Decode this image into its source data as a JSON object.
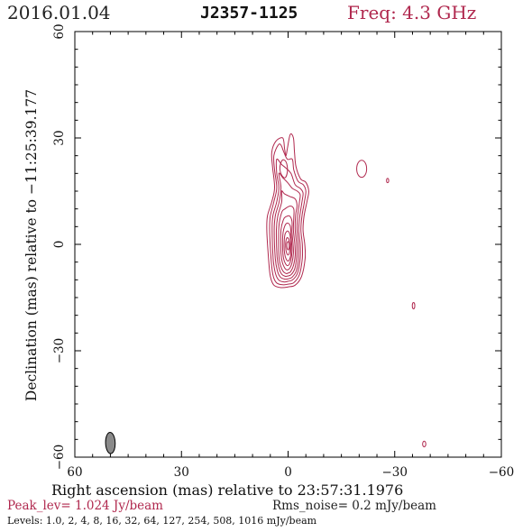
{
  "header": {
    "date": "2016.01.04",
    "source": "J2357-1125",
    "frequency": "Freq: 4.3 GHz"
  },
  "footer": {
    "peak": "Peak_lev=  1.024 Jy/beam",
    "rms": "Rms_noise=  0.2 mJy/beam",
    "levels": "Levels: 1.0,   2,   4,   8,  16,  32,  64, 127, 254, 508, 1016 mJy/beam"
  },
  "colors": {
    "contour": "#b0284e",
    "beam_fill": "#8a8a8a",
    "axis": "#000000"
  },
  "chart_data": {
    "type": "contour",
    "xlabel": "Right ascension (mas) relative to 23:57:31.1976",
    "ylabel": "Declination (mas) relative to −11:25:39.177",
    "xlim": [
      60,
      -60
    ],
    "ylim": [
      -60,
      60
    ],
    "x_ticks": [
      60,
      30,
      0,
      -30,
      -60
    ],
    "y_ticks": [
      60,
      30,
      0,
      -30,
      -60
    ],
    "x_tick_labels": [
      "60",
      "30",
      "0",
      "−30",
      "−60"
    ],
    "y_tick_labels": [
      "60",
      "30",
      "0",
      "−30",
      "−60"
    ],
    "contour_levels_mJy": [
      1.0,
      2,
      4,
      8,
      16,
      32,
      64,
      127,
      254,
      508,
      1016
    ],
    "peak_Jy_per_beam": 1.024,
    "rms_noise_mJy_per_beam": 0.2,
    "peak_position_mas": [
      0,
      0
    ],
    "beam": {
      "major_mas": 6.0,
      "minor_mas": 2.7,
      "pa_deg": 2,
      "center_mas": [
        50,
        -56
      ]
    },
    "core_contours": [
      {
        "level_index": 0,
        "points": [
          [
            1.5,
            30
          ],
          [
            3.5,
            29
          ],
          [
            4.6,
            26
          ],
          [
            4.4,
            22
          ],
          [
            3.8,
            16
          ],
          [
            4.6,
            12
          ],
          [
            5.8,
            8
          ],
          [
            6,
            4
          ],
          [
            5.5,
            -4
          ],
          [
            5,
            -9
          ],
          [
            4,
            -11.5
          ],
          [
            2,
            -12.2
          ],
          [
            0,
            -12
          ],
          [
            -2,
            -11.5
          ],
          [
            -3.8,
            -9
          ],
          [
            -4.8,
            -4
          ],
          [
            -4.7,
            0
          ],
          [
            -4.2,
            4
          ],
          [
            -4.5,
            8
          ],
          [
            -5.3,
            12
          ],
          [
            -5.8,
            15
          ],
          [
            -5,
            17.5
          ],
          [
            -3.5,
            18.5
          ],
          [
            -2.2,
            22
          ],
          [
            -1.8,
            26
          ],
          [
            -1.5,
            30
          ],
          [
            -0.6,
            31
          ],
          [
            0.2,
            27
          ],
          [
            0.6,
            25
          ],
          [
            1,
            27
          ]
        ]
      },
      {
        "level_index": 1,
        "points": [
          [
            2.8,
            28
          ],
          [
            4,
            25
          ],
          [
            3.8,
            21
          ],
          [
            3.2,
            16
          ],
          [
            4,
            12
          ],
          [
            5,
            8
          ],
          [
            5.2,
            4
          ],
          [
            4.8,
            -4
          ],
          [
            4.3,
            -8.5
          ],
          [
            3.3,
            -10.8
          ],
          [
            1.5,
            -11.4
          ],
          [
            0,
            -11.2
          ],
          [
            -1.6,
            -10.8
          ],
          [
            -3.2,
            -8.5
          ],
          [
            -4,
            -4
          ],
          [
            -4,
            0
          ],
          [
            -3.6,
            4
          ],
          [
            -3.9,
            8
          ],
          [
            -4.6,
            12
          ],
          [
            -5,
            15
          ],
          [
            -4.3,
            16.8
          ],
          [
            -2.8,
            17.8
          ],
          [
            -1.6,
            21
          ],
          [
            -1.2,
            24
          ],
          [
            0.2,
            24
          ],
          [
            1.2,
            26
          ],
          [
            2,
            28
          ]
        ]
      },
      {
        "level_index": 2,
        "points": [
          [
            3.2,
            24
          ],
          [
            3.2,
            20
          ],
          [
            2.6,
            16
          ],
          [
            3.2,
            12
          ],
          [
            4.3,
            8
          ],
          [
            4.5,
            4
          ],
          [
            4.2,
            -4
          ],
          [
            3.6,
            -8
          ],
          [
            2.7,
            -10
          ],
          [
            1.2,
            -10.6
          ],
          [
            0,
            -10.4
          ],
          [
            -1.3,
            -10
          ],
          [
            -2.7,
            -8
          ],
          [
            -3.4,
            -4
          ],
          [
            -3.4,
            0
          ],
          [
            -3,
            4
          ],
          [
            -3.3,
            8
          ],
          [
            -3.9,
            12
          ],
          [
            -4.2,
            14.5
          ],
          [
            -3.4,
            15.8
          ],
          [
            -2,
            16.8
          ],
          [
            -0.8,
            20
          ],
          [
            0.6,
            21.5
          ],
          [
            1.8,
            22.5
          ]
        ]
      },
      {
        "level_index": 3,
        "points": [
          [
            2.6,
            20
          ],
          [
            2,
            16
          ],
          [
            2.5,
            12
          ],
          [
            3.6,
            8
          ],
          [
            3.9,
            4
          ],
          [
            3.6,
            -4
          ],
          [
            3,
            -7.5
          ],
          [
            2.2,
            -9.2
          ],
          [
            1,
            -9.8
          ],
          [
            0,
            -9.7
          ],
          [
            -1.1,
            -9.3
          ],
          [
            -2.3,
            -7.5
          ],
          [
            -2.9,
            -4
          ],
          [
            -2.9,
            0
          ],
          [
            -2.5,
            4
          ],
          [
            -2.7,
            8
          ],
          [
            -3.2,
            12
          ],
          [
            -3.4,
            14
          ],
          [
            -2.6,
            15
          ],
          [
            -1.2,
            15.8
          ],
          [
            0.2,
            17.5
          ],
          [
            1.5,
            18.8
          ]
        ]
      },
      {
        "level_index": 4,
        "points": [
          [
            1.8,
            15
          ],
          [
            1.8,
            12
          ],
          [
            2.9,
            8
          ],
          [
            3.3,
            4
          ],
          [
            3.1,
            -3.5
          ],
          [
            2.5,
            -6.8
          ],
          [
            1.8,
            -8.4
          ],
          [
            0.8,
            -9
          ],
          [
            0,
            -8.9
          ],
          [
            -0.9,
            -8.5
          ],
          [
            -1.9,
            -6.8
          ],
          [
            -2.4,
            -3.5
          ],
          [
            -2.4,
            0
          ],
          [
            -2,
            4
          ],
          [
            -2.1,
            8
          ],
          [
            -2.5,
            11
          ],
          [
            -2,
            12.8
          ],
          [
            -0.5,
            13.5
          ],
          [
            1,
            14.2
          ]
        ]
      },
      {
        "level_index": 5,
        "points": [
          [
            1.8,
            9
          ],
          [
            2.6,
            5
          ],
          [
            2.6,
            -3
          ],
          [
            2.1,
            -6
          ],
          [
            1.4,
            -7.6
          ],
          [
            0.6,
            -8.2
          ],
          [
            0,
            -8.1
          ],
          [
            -0.7,
            -7.7
          ],
          [
            -1.5,
            -6
          ],
          [
            -2,
            -3
          ],
          [
            -1.9,
            0
          ],
          [
            -1.5,
            4
          ],
          [
            -1.6,
            7.5
          ],
          [
            -1.6,
            10
          ],
          [
            -0.6,
            10.8
          ],
          [
            0.9,
            10
          ]
        ]
      },
      {
        "level_index": 6,
        "points": [
          [
            1.3,
            7
          ],
          [
            2,
            4
          ],
          [
            2,
            -2.5
          ],
          [
            1.6,
            -5.2
          ],
          [
            1,
            -6.6
          ],
          [
            0.4,
            -7.2
          ],
          [
            0,
            -7.1
          ],
          [
            -0.5,
            -6.7
          ],
          [
            -1.1,
            -5.2
          ],
          [
            -1.5,
            -2.5
          ],
          [
            -1.4,
            0
          ],
          [
            -1.1,
            3.5
          ],
          [
            -1.1,
            6.5
          ],
          [
            -0.4,
            8
          ],
          [
            0.6,
            7.8
          ]
        ]
      },
      {
        "level_index": 7,
        "points": [
          [
            1,
            5
          ],
          [
            1.5,
            2.5
          ],
          [
            1.5,
            -2
          ],
          [
            1.2,
            -4.3
          ],
          [
            0.7,
            -5.5
          ],
          [
            0.2,
            -6
          ],
          [
            -0.3,
            -5.7
          ],
          [
            -0.8,
            -4.3
          ],
          [
            -1.1,
            -2
          ],
          [
            -1,
            0.5
          ],
          [
            -0.8,
            3
          ],
          [
            -0.6,
            5.2
          ],
          [
            0.2,
            6
          ]
        ]
      },
      {
        "level_index": 8,
        "points": [
          [
            0.8,
            3
          ],
          [
            1.1,
            1
          ],
          [
            1.1,
            -1.6
          ],
          [
            0.8,
            -3.4
          ],
          [
            0.4,
            -4.4
          ],
          [
            0,
            -4.7
          ],
          [
            -0.4,
            -4.3
          ],
          [
            -0.7,
            -3.2
          ],
          [
            -0.8,
            -1.5
          ],
          [
            -0.7,
            0.8
          ],
          [
            -0.5,
            2.8
          ],
          [
            0.1,
            3.8
          ]
        ]
      },
      {
        "level_index": 9,
        "points": [
          [
            0.5,
            1.5
          ],
          [
            0.7,
            0
          ],
          [
            0.6,
            -1.6
          ],
          [
            0.3,
            -2.7
          ],
          [
            0,
            -3
          ],
          [
            -0.3,
            -2.6
          ],
          [
            -0.5,
            -1.4
          ],
          [
            -0.4,
            0.2
          ],
          [
            -0.2,
            1.4
          ],
          [
            0.2,
            1.9
          ]
        ]
      },
      {
        "level_index": 10,
        "points": [
          [
            0.3,
            0.4
          ],
          [
            0.35,
            -0.6
          ],
          [
            0.15,
            -1.4
          ],
          [
            -0.1,
            -1.5
          ],
          [
            -0.3,
            -0.8
          ],
          [
            -0.25,
            0.3
          ],
          [
            0,
            0.8
          ]
        ]
      },
      {
        "level_index": 1,
        "points": [
          [
            1.8,
            23.5
          ],
          [
            2.3,
            21.5
          ],
          [
            1.8,
            19.5
          ],
          [
            0.8,
            18.8
          ],
          [
            0.2,
            20.5
          ],
          [
            0.4,
            22.8
          ],
          [
            1.1,
            23.8
          ]
        ]
      }
    ],
    "knot_contours": [
      {
        "center": [
          -20.7,
          21.3
        ],
        "rx": 1.4,
        "ry": 2.4
      },
      {
        "center": [
          -28,
          18
        ],
        "rx": 0.25,
        "ry": 0.6
      },
      {
        "center": [
          -35.3,
          -17.3
        ],
        "rx": 0.35,
        "ry": 0.9
      },
      {
        "center": [
          -38.3,
          -56.3
        ],
        "rx": 0.45,
        "ry": 0.8
      }
    ]
  }
}
